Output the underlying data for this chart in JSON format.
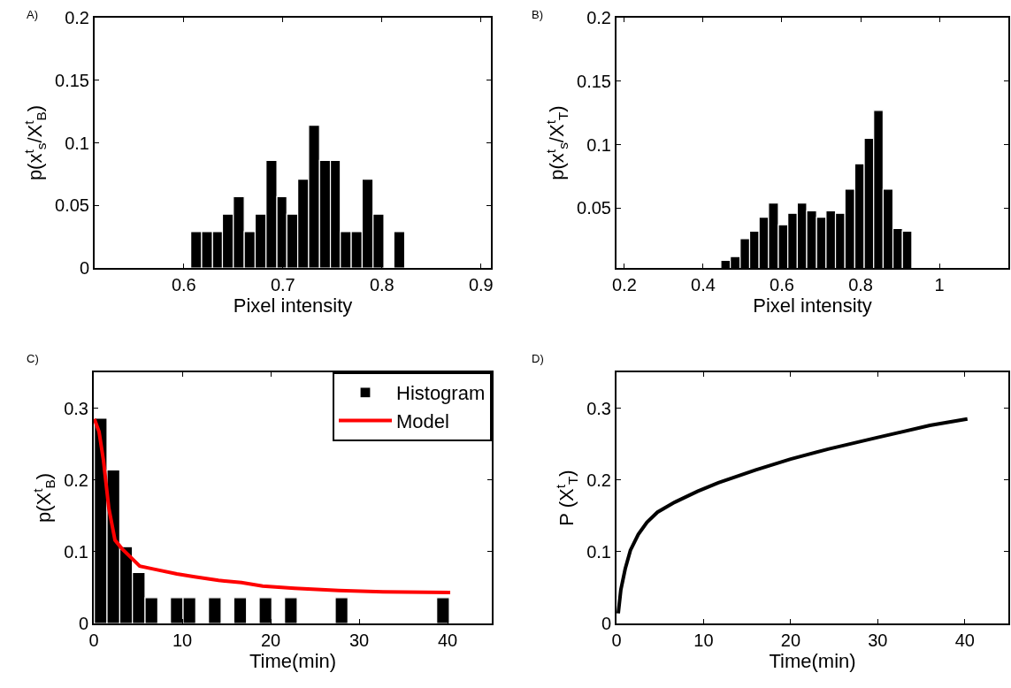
{
  "chart_data": [
    {
      "type": "histogram",
      "title": "A)",
      "xlabel": "Pixel intensity",
      "ylabel": "p(x$^{t}$$_{s}$/X$^{t}$$_{B}$)",
      "color": "#000000",
      "bins": [
        0.607,
        0.618,
        0.629,
        0.639,
        0.65,
        0.661,
        0.672,
        0.683,
        0.694,
        0.704,
        0.715,
        0.726,
        0.737,
        0.748,
        0.758,
        0.769,
        0.78,
        0.791,
        0.802,
        0.812,
        0.823
      ],
      "values": [
        0.029,
        0.029,
        0.029,
        0.043,
        0.057,
        0.029,
        0.043,
        0.086,
        0.057,
        0.043,
        0.071,
        0.114,
        0.086,
        0.086,
        0.029,
        0.029,
        0.071,
        0.043,
        0,
        0.029
      ],
      "xlim": [
        0.51,
        0.91
      ],
      "xticks": [
        0.6,
        0.7,
        0.8,
        0.9
      ],
      "ylim": [
        0,
        0.2
      ],
      "yticks": [
        0,
        0.05,
        0.1,
        0.15,
        0.2
      ]
    },
    {
      "type": "histogram",
      "title": "B)",
      "xlabel": "Pixel intensity",
      "ylabel": "p(x$^{t}$$_{s}$/X$^{t}$$_{T}$)",
      "color": "#000000",
      "bins": [
        0.445,
        0.469,
        0.494,
        0.518,
        0.542,
        0.566,
        0.591,
        0.615,
        0.639,
        0.663,
        0.688,
        0.712,
        0.736,
        0.76,
        0.785,
        0.809,
        0.833,
        0.857,
        0.882,
        0.906,
        0.93
      ],
      "values": [
        0.009,
        0.012,
        0.026,
        0.032,
        0.043,
        0.054,
        0.037,
        0.046,
        0.054,
        0.048,
        0.043,
        0.048,
        0.046,
        0.065,
        0.085,
        0.105,
        0.127,
        0.065,
        0.034,
        0.032
      ],
      "xlim": [
        0.18,
        1.175
      ],
      "xticks": [
        0.2,
        0.4,
        0.6,
        0.8,
        1
      ],
      "ylim": [
        0.003,
        0.2
      ],
      "yticks": [
        0.05,
        0.1,
        0.15,
        0.2
      ]
    },
    {
      "type": "histogram",
      "title": "C)",
      "xlabel": "Time(min)",
      "ylabel": "p(X$^{t}$$_{B}$)",
      "legend": "top right",
      "series": [
        {
          "name": "Histogram",
          "color": "#000000",
          "bins": [
            0.07,
            1.5,
            2.94,
            4.37,
            5.8,
            7.24,
            8.67,
            10.1,
            11.53,
            12.97,
            14.4,
            15.83,
            17.27,
            18.7,
            20.13,
            21.57,
            23.0,
            24.43,
            25.87,
            27.3,
            28.73,
            30.17,
            31.6,
            33.03,
            34.47,
            35.9,
            37.33,
            38.77,
            40.2
          ],
          "values": [
            0.286,
            0.214,
            0.107,
            0.071,
            0.036,
            0,
            0.036,
            0.036,
            0,
            0.036,
            0,
            0.036,
            0,
            0.036,
            0,
            0.036,
            0,
            0,
            0,
            0.036,
            0,
            0,
            0,
            0,
            0,
            0,
            0,
            0.036
          ]
        },
        {
          "name": "Model",
          "type": "line",
          "color": "#ff0000",
          "x": [
            0.07,
            0.6,
            1.1,
            1.7,
            2.4,
            3.2,
            4.2,
            5.2,
            6.7,
            9.4,
            11.4,
            14.1,
            16.7,
            19.1,
            22.7,
            27.7,
            32.7,
            40.3
          ],
          "values": [
            0.285,
            0.267,
            0.227,
            0.161,
            0.116,
            0.104,
            0.092,
            0.08,
            0.076,
            0.069,
            0.065,
            0.06,
            0.057,
            0.052,
            0.049,
            0.046,
            0.044,
            0.043
          ]
        }
      ],
      "xlim": [
        0,
        45
      ],
      "xticks": [
        0,
        10,
        20,
        30,
        40
      ],
      "ylim": [
        0,
        0.35
      ],
      "yticks": [
        0,
        0.1,
        0.2,
        0.3
      ]
    },
    {
      "type": "line",
      "title": "D)",
      "xlabel": "Time(min)",
      "ylabel": "P (X$^{t}$$_{T}$)",
      "color": "#000000",
      "x": [
        0.2,
        0.5,
        1.0,
        1.6,
        2.5,
        3.5,
        4.7,
        6.7,
        9.3,
        11.7,
        16,
        20,
        24.3,
        29.9,
        36,
        40.3
      ],
      "values": [
        0.014,
        0.047,
        0.076,
        0.102,
        0.124,
        0.141,
        0.155,
        0.169,
        0.184,
        0.196,
        0.214,
        0.229,
        0.243,
        0.259,
        0.276,
        0.285
      ],
      "xlim": [
        0,
        45
      ],
      "xticks": [
        0,
        10,
        20,
        30,
        40
      ],
      "ylim": [
        0,
        0.35
      ],
      "yticks": [
        0,
        0.1,
        0.2,
        0.3
      ]
    }
  ]
}
